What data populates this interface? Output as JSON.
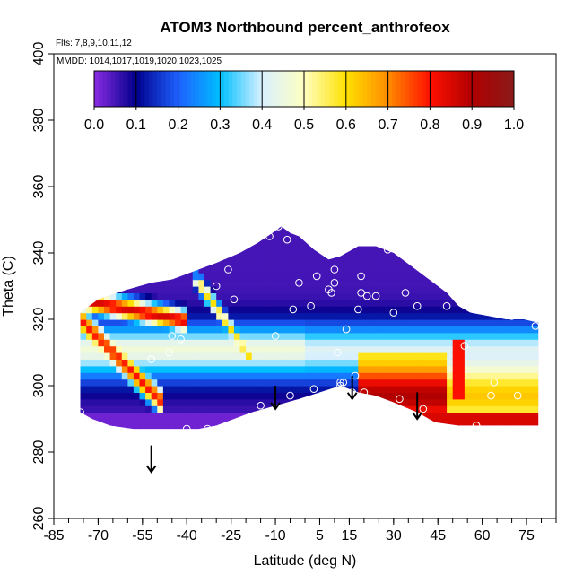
{
  "chart_data": {
    "type": "heatmap",
    "title": "ATOM3 Northbound percent_anthrofeox",
    "flights_label": "Flts: 7,8,9,10,11,12",
    "mmdd_label": "MMDD: 1014,1017,1019,1020,1023,1025",
    "xlabel": "Latitude (deg N)",
    "ylabel": "Theta (C)",
    "xlim": [
      -85,
      85
    ],
    "ylim": [
      260,
      400
    ],
    "x_ticks": [
      "-85",
      "-70",
      "-55",
      "-40",
      "-25",
      "-10",
      "5",
      "15",
      "30",
      "45",
      "60",
      "75"
    ],
    "x_tick_values": [
      -85,
      -70,
      -55,
      -40,
      -25,
      -10,
      5,
      15,
      30,
      45,
      60,
      75
    ],
    "y_ticks": [
      "260",
      "280",
      "300",
      "320",
      "340",
      "360",
      "380",
      "400"
    ],
    "y_tick_values": [
      260,
      280,
      300,
      320,
      340,
      360,
      380,
      400
    ],
    "colorbar": {
      "ticks": [
        "0.0",
        "0.1",
        "0.2",
        "0.3",
        "0.4",
        "0.5",
        "0.6",
        "0.7",
        "0.8",
        "0.9",
        "1.0"
      ],
      "colors": [
        "#8A2BE2",
        "#00008B",
        "#1E60FF",
        "#00BFFF",
        "#D8F0FF",
        "#FFFFC0",
        "#FFE000",
        "#FF8C00",
        "#FF1000",
        "#B00000",
        "#8B1A1A"
      ]
    },
    "filled_region": {
      "top": [
        [
          -76,
          322
        ],
        [
          -70,
          326
        ],
        [
          -60,
          329
        ],
        [
          -52,
          331
        ],
        [
          -45,
          332
        ],
        [
          -36,
          335
        ],
        [
          -30,
          337
        ],
        [
          -22,
          340
        ],
        [
          -16,
          343
        ],
        [
          -11,
          346
        ],
        [
          -8,
          348
        ],
        [
          -5,
          346
        ],
        [
          -2,
          345
        ],
        [
          3,
          341
        ],
        [
          8,
          338
        ],
        [
          12,
          339
        ],
        [
          18,
          342
        ],
        [
          24,
          342
        ],
        [
          30,
          340
        ],
        [
          36,
          336
        ],
        [
          42,
          332
        ],
        [
          48,
          328
        ],
        [
          52,
          324
        ],
        [
          56,
          322
        ],
        [
          62,
          321
        ],
        [
          68,
          320
        ],
        [
          74,
          320
        ],
        [
          79,
          319
        ]
      ],
      "bottom": [
        [
          79,
          288
        ],
        [
          70,
          288
        ],
        [
          60,
          288
        ],
        [
          52,
          288
        ],
        [
          44,
          289
        ],
        [
          38,
          292
        ],
        [
          30,
          295
        ],
        [
          24,
          297
        ],
        [
          18,
          298
        ],
        [
          12,
          300
        ],
        [
          5,
          298
        ],
        [
          -2,
          296
        ],
        [
          -10,
          294
        ],
        [
          -18,
          292
        ],
        [
          -24,
          290
        ],
        [
          -30,
          288
        ],
        [
          -36,
          287
        ],
        [
          -44,
          287
        ],
        [
          -50,
          287
        ],
        [
          -58,
          287
        ],
        [
          -66,
          288
        ],
        [
          -72,
          290
        ],
        [
          -76,
          292
        ]
      ],
      "note_bands": [
        {
          "value": 0.0,
          "pts": [
            [
              -76,
              292
            ],
            [
              -60,
              291
            ],
            [
              -50,
              293
            ],
            [
              -40,
              290
            ],
            [
              -30,
              292
            ],
            [
              -20,
              294
            ],
            [
              -10,
              296
            ],
            [
              0,
              298
            ],
            [
              5,
              300
            ],
            [
              10,
              302
            ],
            [
              5,
              298
            ],
            [
              -10,
              294
            ],
            [
              -30,
              288
            ],
            [
              -50,
              287
            ],
            [
              -70,
              289
            ],
            [
              -76,
              292
            ]
          ]
        }
      ]
    },
    "arrows": [
      {
        "lat": -52,
        "theta_top": 282,
        "theta_bottom": 274
      },
      {
        "lat": -10,
        "theta_top": 300,
        "theta_bottom": 293
      },
      {
        "lat": 16,
        "theta_top": 303,
        "theta_bottom": 296
      },
      {
        "lat": 38,
        "theta_top": 298,
        "theta_bottom": 290
      }
    ],
    "sample_points": [
      [
        -76,
        292
      ],
      [
        -52,
        308
      ],
      [
        -46,
        310
      ],
      [
        -45,
        315
      ],
      [
        -42,
        314
      ],
      [
        -40,
        287
      ],
      [
        -33,
        287
      ],
      [
        -30,
        330
      ],
      [
        -26,
        335
      ],
      [
        -24,
        326
      ],
      [
        -15,
        294
      ],
      [
        -12,
        345
      ],
      [
        -9,
        348
      ],
      [
        -10,
        315
      ],
      [
        -6,
        344
      ],
      [
        -5,
        297
      ],
      [
        -4,
        323
      ],
      [
        -2,
        331
      ],
      [
        2,
        324
      ],
      [
        3,
        299
      ],
      [
        4,
        333
      ],
      [
        8,
        329
      ],
      [
        9,
        328
      ],
      [
        10,
        331
      ],
      [
        10,
        335
      ],
      [
        11,
        310
      ],
      [
        12,
        301
      ],
      [
        12,
        300
      ],
      [
        13,
        301
      ],
      [
        14,
        317
      ],
      [
        16,
        298
      ],
      [
        17,
        303
      ],
      [
        18,
        323
      ],
      [
        19,
        328
      ],
      [
        19,
        333
      ],
      [
        20,
        298
      ],
      [
        21,
        327
      ],
      [
        24,
        327
      ],
      [
        28,
        341
      ],
      [
        30,
        322
      ],
      [
        32,
        296
      ],
      [
        34,
        328
      ],
      [
        38,
        324
      ],
      [
        40,
        293
      ],
      [
        48,
        324
      ],
      [
        54,
        312
      ],
      [
        58,
        288
      ],
      [
        63,
        297
      ],
      [
        64,
        301
      ],
      [
        70,
        321
      ],
      [
        72,
        297
      ],
      [
        78,
        318
      ]
    ]
  }
}
